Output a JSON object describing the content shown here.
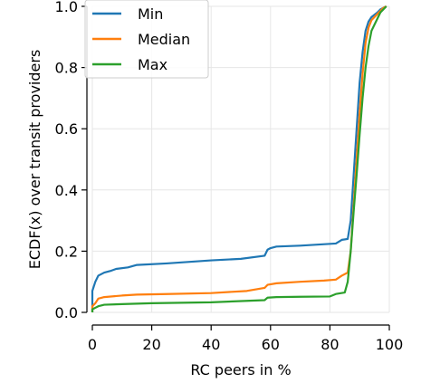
{
  "chart_data": {
    "type": "line",
    "title": "",
    "xlabel": "RC peers in %",
    "ylabel": "ECDF(x) over transit providers",
    "xlim": [
      0,
      100
    ],
    "ylim": [
      0,
      1
    ],
    "xticks": [
      "0",
      "20",
      "40",
      "60",
      "80",
      "100"
    ],
    "yticks": [
      "0.0",
      "0.2",
      "0.4",
      "0.6",
      "0.8",
      "1.0"
    ],
    "grid": true,
    "legend_position": "top-left",
    "series": [
      {
        "name": "Min",
        "color": "#1f77b4",
        "points": [
          [
            0,
            0.0
          ],
          [
            0,
            0.07
          ],
          [
            1,
            0.1
          ],
          [
            2,
            0.12
          ],
          [
            4,
            0.13
          ],
          [
            6,
            0.135
          ],
          [
            8,
            0.142
          ],
          [
            12,
            0.147
          ],
          [
            15,
            0.155
          ],
          [
            25,
            0.16
          ],
          [
            40,
            0.17
          ],
          [
            50,
            0.175
          ],
          [
            58,
            0.185
          ],
          [
            59,
            0.205
          ],
          [
            60,
            0.21
          ],
          [
            62,
            0.215
          ],
          [
            70,
            0.218
          ],
          [
            82,
            0.225
          ],
          [
            84,
            0.237
          ],
          [
            86,
            0.24
          ],
          [
            87,
            0.3
          ],
          [
            88,
            0.45
          ],
          [
            89,
            0.6
          ],
          [
            90,
            0.75
          ],
          [
            91,
            0.85
          ],
          [
            92,
            0.92
          ],
          [
            93,
            0.95
          ],
          [
            94,
            0.965
          ],
          [
            96,
            0.98
          ],
          [
            97,
            0.99
          ],
          [
            99,
            1.0
          ]
        ]
      },
      {
        "name": "Median",
        "color": "#ff7f0e",
        "points": [
          [
            0,
            0.0
          ],
          [
            0,
            0.02
          ],
          [
            1,
            0.03
          ],
          [
            2,
            0.045
          ],
          [
            4,
            0.05
          ],
          [
            10,
            0.055
          ],
          [
            15,
            0.058
          ],
          [
            25,
            0.06
          ],
          [
            40,
            0.063
          ],
          [
            52,
            0.07
          ],
          [
            58,
            0.08
          ],
          [
            59,
            0.09
          ],
          [
            62,
            0.095
          ],
          [
            70,
            0.1
          ],
          [
            78,
            0.104
          ],
          [
            82,
            0.107
          ],
          [
            84,
            0.12
          ],
          [
            86,
            0.13
          ],
          [
            87,
            0.2
          ],
          [
            88,
            0.35
          ],
          [
            89,
            0.5
          ],
          [
            90,
            0.65
          ],
          [
            91,
            0.78
          ],
          [
            92,
            0.88
          ],
          [
            93,
            0.93
          ],
          [
            94,
            0.955
          ],
          [
            96,
            0.975
          ],
          [
            98,
            0.995
          ],
          [
            99,
            1.0
          ]
        ]
      },
      {
        "name": "Max",
        "color": "#2ca02c",
        "points": [
          [
            0,
            0.0
          ],
          [
            0,
            0.01
          ],
          [
            1,
            0.015
          ],
          [
            2,
            0.02
          ],
          [
            4,
            0.025
          ],
          [
            10,
            0.027
          ],
          [
            20,
            0.03
          ],
          [
            40,
            0.033
          ],
          [
            58,
            0.04
          ],
          [
            59,
            0.048
          ],
          [
            62,
            0.05
          ],
          [
            70,
            0.051
          ],
          [
            80,
            0.052
          ],
          [
            82,
            0.06
          ],
          [
            85,
            0.065
          ],
          [
            86,
            0.1
          ],
          [
            87,
            0.2
          ],
          [
            88,
            0.33
          ],
          [
            89,
            0.45
          ],
          [
            90,
            0.58
          ],
          [
            91,
            0.7
          ],
          [
            92,
            0.8
          ],
          [
            93,
            0.87
          ],
          [
            94,
            0.92
          ],
          [
            95,
            0.94
          ],
          [
            96,
            0.96
          ],
          [
            97,
            0.98
          ],
          [
            98,
            0.99
          ],
          [
            99,
            1.0
          ]
        ]
      }
    ]
  }
}
